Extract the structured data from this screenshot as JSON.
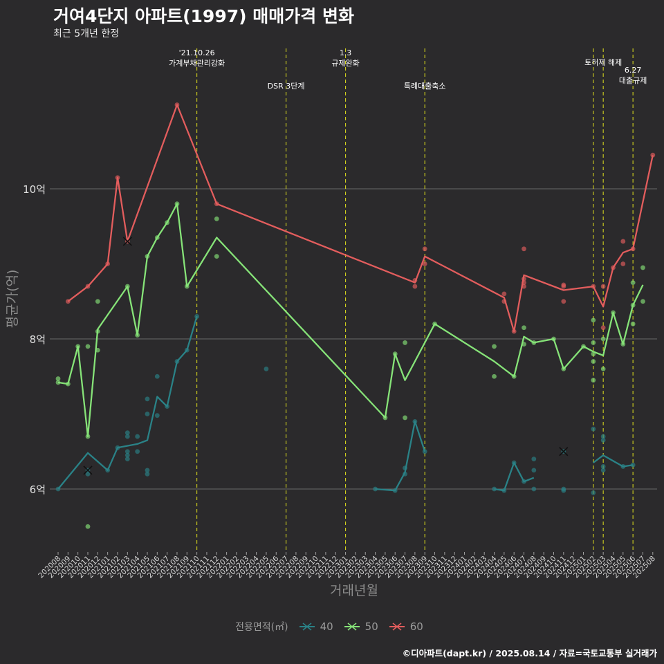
{
  "header": {
    "title": "거여4단지 아파트(1997) 매매가격 변화",
    "subtitle": "최근 5개년 한정",
    "caption": "©디아파트(dapt.kr) / 2025.08.14 / 자료=국토교통부 실거래가"
  },
  "colors": {
    "background": "#2b2a2c",
    "s40": "#2a8287",
    "s50": "#86e378",
    "s60": "#e35d5d",
    "event_line": "#d4d41e",
    "grid": "#6a6a6a"
  },
  "chart_data": {
    "type": "line",
    "xlabel": "거래년월",
    "ylabel": "평균가(억)",
    "ylim": [
      5.2,
      11.6
    ],
    "yticks": [
      {
        "v": 6,
        "label": "6억"
      },
      {
        "v": 8,
        "label": "8억"
      },
      {
        "v": 10,
        "label": "10억"
      }
    ],
    "months": [
      "202008",
      "202009",
      "202010",
      "202011",
      "202012",
      "202101",
      "202102",
      "202103",
      "202104",
      "202105",
      "202106",
      "202107",
      "202108",
      "202109",
      "202110",
      "202111",
      "202112",
      "202201",
      "202202",
      "202203",
      "202204",
      "202205",
      "202206",
      "202207",
      "202208",
      "202209",
      "202210",
      "202211",
      "202212",
      "202301",
      "202302",
      "202303",
      "202304",
      "202305",
      "202306",
      "202307",
      "202308",
      "202309",
      "202310",
      "202311",
      "202312",
      "202401",
      "202402",
      "202403",
      "202404",
      "202405",
      "202406",
      "202407",
      "202408",
      "202409",
      "202410",
      "202411",
      "202412",
      "202501",
      "202502",
      "202503",
      "202504",
      "202505",
      "202506",
      "202507",
      "202508"
    ],
    "legend_title": "전용면적(㎡)",
    "events": [
      {
        "x": 14.0,
        "label": "'21.10.26\n가계부채관리강화",
        "row": 1
      },
      {
        "x": 23.0,
        "label": "DSR 3단계",
        "row": 2
      },
      {
        "x": 29.0,
        "label": "1.3\n규제완화",
        "row": 1
      },
      {
        "x": 37.0,
        "label": "특례대출축소",
        "row": 2
      },
      {
        "x": 54.0,
        "label": "",
        "row": 0
      },
      {
        "x": 55.0,
        "label": "토허제 해제",
        "row": 1
      },
      {
        "x": 58.0,
        "label": "6.27\n대출규제",
        "row": 3
      }
    ],
    "series": [
      {
        "name": "40",
        "color": "#2a8287",
        "lines": [
          [
            [
              0,
              6.0
            ],
            [
              3,
              6.48
            ],
            [
              5,
              6.25
            ],
            [
              6,
              6.55
            ],
            [
              8,
              6.6
            ],
            [
              9,
              6.65
            ],
            [
              10,
              7.23
            ],
            [
              11,
              7.1
            ],
            [
              12,
              7.7
            ],
            [
              13,
              7.85
            ],
            [
              14,
              8.3
            ]
          ],
          [
            [
              32,
              6.0
            ],
            [
              34,
              5.98
            ],
            [
              35,
              6.22
            ],
            [
              36,
              6.9
            ],
            [
              37,
              6.5
            ]
          ],
          [
            [
              44,
              6.0
            ],
            [
              45,
              5.98
            ],
            [
              46,
              6.35
            ],
            [
              47,
              6.1
            ],
            [
              48,
              6.15
            ]
          ],
          [
            [
              54,
              6.35
            ],
            [
              55,
              6.45
            ],
            [
              57,
              6.3
            ],
            [
              58,
              6.32
            ]
          ]
        ],
        "points": [
          [
            0,
            6.0
          ],
          [
            3,
            6.25
          ],
          [
            3,
            6.2
          ],
          [
            5,
            6.25
          ],
          [
            6,
            6.55
          ],
          [
            7,
            6.7
          ],
          [
            7,
            6.75
          ],
          [
            7,
            6.5
          ],
          [
            7,
            6.45
          ],
          [
            7,
            6.4
          ],
          [
            8,
            6.7
          ],
          [
            8,
            6.5
          ],
          [
            9,
            6.25
          ],
          [
            9,
            6.2
          ],
          [
            9,
            7.0
          ],
          [
            9,
            7.2
          ],
          [
            10,
            7.5
          ],
          [
            10,
            6.98
          ],
          [
            11,
            7.1
          ],
          [
            12,
            7.7
          ],
          [
            13,
            7.85
          ],
          [
            14,
            8.3
          ],
          [
            21,
            7.6
          ],
          [
            32,
            6.0
          ],
          [
            34,
            5.98
          ],
          [
            35,
            6.28
          ],
          [
            35,
            6.2
          ],
          [
            36,
            6.9
          ],
          [
            37,
            6.5
          ],
          [
            44,
            6.0
          ],
          [
            45,
            5.98
          ],
          [
            46,
            6.35
          ],
          [
            47,
            6.1
          ],
          [
            48,
            6.4
          ],
          [
            48,
            6.25
          ],
          [
            48,
            6.0
          ],
          [
            51,
            6.0
          ],
          [
            51,
            5.98
          ],
          [
            51,
            6.5
          ],
          [
            54,
            5.95
          ],
          [
            54,
            6.8
          ],
          [
            55,
            6.65
          ],
          [
            55,
            6.7
          ],
          [
            55,
            6.3
          ],
          [
            55,
            6.25
          ],
          [
            57,
            6.3
          ],
          [
            58,
            6.32
          ]
        ],
        "crosses": [
          [
            3,
            6.25
          ],
          [
            51,
            6.5
          ]
        ]
      },
      {
        "name": "50",
        "color": "#86e378",
        "lines": [
          [
            [
              0,
              7.42
            ],
            [
              1,
              7.4
            ],
            [
              2,
              7.9
            ],
            [
              3,
              6.7
            ],
            [
              4,
              8.13
            ],
            [
              7,
              8.7
            ],
            [
              8,
              8.05
            ],
            [
              9,
              9.1
            ],
            [
              10,
              9.35
            ],
            [
              11,
              9.55
            ],
            [
              12,
              9.8
            ],
            [
              13,
              8.7
            ],
            [
              16,
              9.35
            ],
            [
              33,
              6.95
            ],
            [
              34,
              7.8
            ],
            [
              35,
              7.45
            ],
            [
              38,
              8.2
            ],
            [
              44,
              7.7
            ],
            [
              46,
              7.5
            ],
            [
              47,
              8.03
            ],
            [
              48,
              7.95
            ],
            [
              50,
              8.0
            ],
            [
              51,
              7.6
            ],
            [
              53,
              7.9
            ],
            [
              54,
              7.83
            ],
            [
              55,
              7.78
            ],
            [
              56,
              8.35
            ],
            [
              57,
              7.93
            ],
            [
              58,
              8.45
            ],
            [
              59,
              8.72
            ]
          ]
        ],
        "points": [
          [
            0,
            7.42
          ],
          [
            0,
            7.47
          ],
          [
            1,
            7.4
          ],
          [
            2,
            7.9
          ],
          [
            3,
            6.7
          ],
          [
            3,
            7.9
          ],
          [
            3,
            5.5
          ],
          [
            4,
            8.1
          ],
          [
            4,
            8.5
          ],
          [
            4,
            7.85
          ],
          [
            7,
            8.7
          ],
          [
            8,
            8.05
          ],
          [
            9,
            9.1
          ],
          [
            10,
            9.35
          ],
          [
            11,
            9.55
          ],
          [
            12,
            9.8
          ],
          [
            13,
            8.7
          ],
          [
            16,
            9.6
          ],
          [
            16,
            9.1
          ],
          [
            33,
            6.95
          ],
          [
            34,
            7.8
          ],
          [
            35,
            7.95
          ],
          [
            35,
            6.95
          ],
          [
            38,
            8.2
          ],
          [
            44,
            7.9
          ],
          [
            44,
            7.5
          ],
          [
            46,
            7.5
          ],
          [
            47,
            8.15
          ],
          [
            47,
            7.93
          ],
          [
            48,
            7.95
          ],
          [
            50,
            8.0
          ],
          [
            51,
            7.6
          ],
          [
            53,
            7.9
          ],
          [
            54,
            8.25
          ],
          [
            54,
            7.95
          ],
          [
            54,
            7.8
          ],
          [
            54,
            7.7
          ],
          [
            54,
            7.45
          ],
          [
            55,
            8.0
          ],
          [
            55,
            7.6
          ],
          [
            56,
            8.35
          ],
          [
            57,
            7.93
          ],
          [
            58,
            8.75
          ],
          [
            58,
            8.45
          ],
          [
            58,
            8.2
          ],
          [
            59,
            8.95
          ],
          [
            59,
            8.5
          ]
        ],
        "crosses": []
      },
      {
        "name": "60",
        "color": "#e35d5d",
        "lines": [
          [
            [
              1,
              8.5
            ],
            [
              3,
              8.7
            ],
            [
              5,
              9.0
            ],
            [
              6,
              10.15
            ],
            [
              7,
              9.3
            ],
            [
              12,
              11.12
            ],
            [
              16,
              9.8
            ],
            [
              36,
              8.75
            ],
            [
              37,
              9.1
            ],
            [
              45,
              8.55
            ],
            [
              46,
              8.1
            ],
            [
              47,
              8.85
            ],
            [
              51,
              8.65
            ],
            [
              54,
              8.7
            ],
            [
              55,
              8.43
            ],
            [
              56,
              8.95
            ],
            [
              57,
              9.15
            ],
            [
              58,
              9.2
            ],
            [
              60,
              10.45
            ]
          ]
        ],
        "points": [
          [
            1,
            8.5
          ],
          [
            3,
            8.7
          ],
          [
            5,
            9.0
          ],
          [
            6,
            10.15
          ],
          [
            7,
            9.3
          ],
          [
            12,
            11.12
          ],
          [
            16,
            9.8
          ],
          [
            36,
            8.78
          ],
          [
            36,
            8.7
          ],
          [
            37,
            9.2
          ],
          [
            37,
            9.0
          ],
          [
            45,
            8.6
          ],
          [
            45,
            8.5
          ],
          [
            46,
            8.1
          ],
          [
            47,
            9.2
          ],
          [
            47,
            8.8
          ],
          [
            47,
            8.75
          ],
          [
            47,
            8.7
          ],
          [
            51,
            8.72
          ],
          [
            51,
            8.7
          ],
          [
            51,
            8.5
          ],
          [
            54,
            8.7
          ],
          [
            55,
            8.7
          ],
          [
            55,
            8.15
          ],
          [
            56,
            8.95
          ],
          [
            57,
            9.3
          ],
          [
            57,
            9.0
          ],
          [
            58,
            9.2
          ],
          [
            60,
            10.45
          ]
        ],
        "crosses": [
          [
            7,
            9.3
          ]
        ]
      }
    ]
  }
}
